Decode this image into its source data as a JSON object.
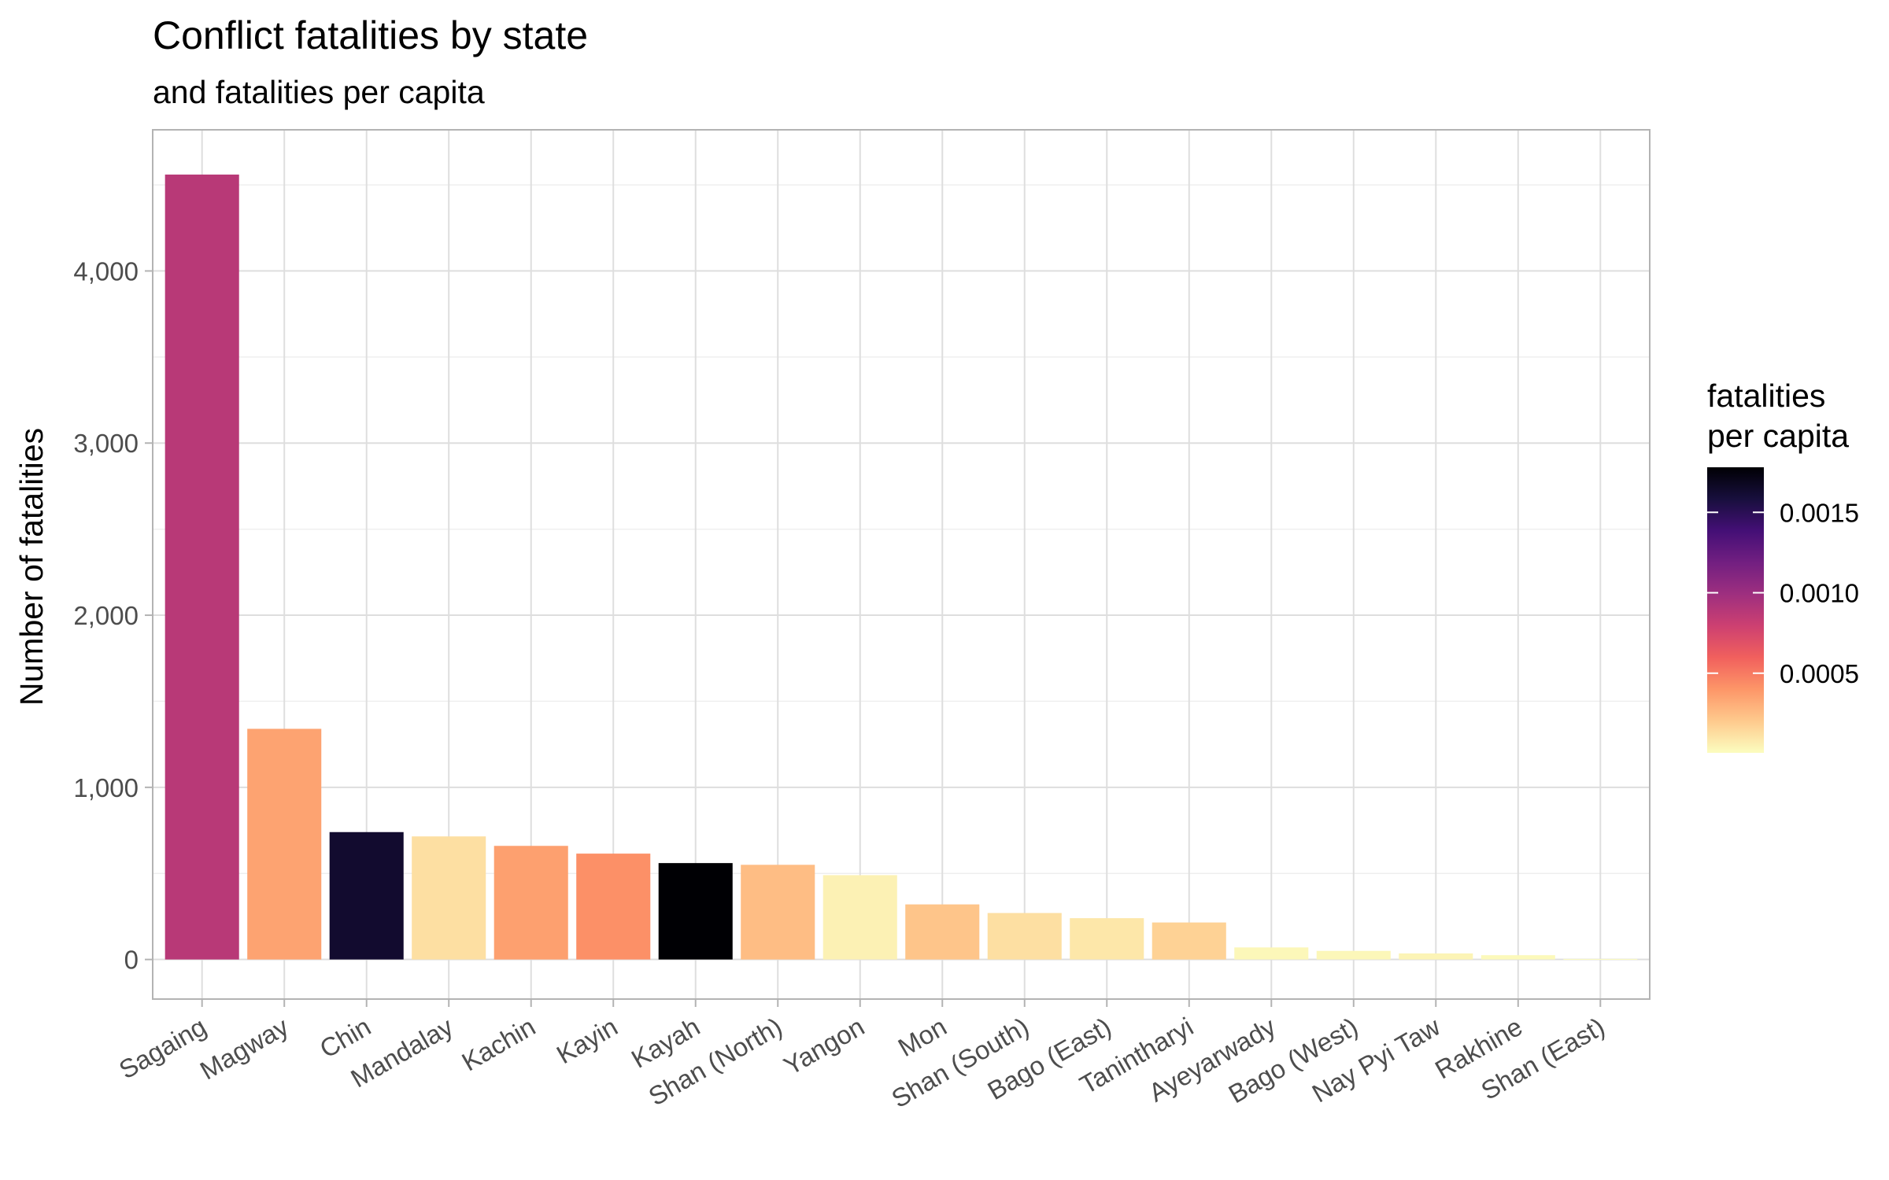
{
  "chart_data": {
    "type": "bar",
    "title": "Conflict fatalities by state",
    "subtitle": "and fatalities per capita",
    "xlabel": "",
    "ylabel": "Number of fatalities",
    "categories": [
      "Sagaing",
      "Magway",
      "Chin",
      "Mandalay",
      "Kachin",
      "Kayin",
      "Kayah",
      "Shan (North)",
      "Yangon",
      "Mon",
      "Shan (South)",
      "Bago (East)",
      "Tanintharyi",
      "Ayeyarwady",
      "Bago (West)",
      "Nay Pyi Taw",
      "Rakhine",
      "Shan (East)"
    ],
    "values": [
      4560,
      1340,
      740,
      715,
      660,
      615,
      560,
      550,
      490,
      320,
      270,
      240,
      215,
      70,
      50,
      35,
      25,
      3
    ],
    "fatalities_per_capita": [
      0.00088,
      0.00035,
      0.00163,
      0.00012,
      0.00036,
      0.00042,
      0.00178,
      0.00025,
      5e-05,
      0.00022,
      0.00012,
      9e-05,
      0.00017,
      3e-05,
      3e-05,
      4e-05,
      2e-05,
      5e-06
    ],
    "ylim": [
      -230,
      4820
    ],
    "y_ticks": [
      0,
      1000,
      2000,
      3000,
      4000
    ],
    "y_tick_labels": [
      "0",
      "1,000",
      "2,000",
      "3,000",
      "4,000"
    ],
    "grid": true,
    "x_tick_rotation_deg": 30,
    "legend": {
      "title_lines": [
        "fatalities",
        "per capita"
      ],
      "placement": "right",
      "type": "colorbar",
      "palette": "magma (reversed)",
      "range": [
        5e-06,
        0.00178
      ],
      "ticks": [
        0.0005,
        0.001,
        0.0015
      ],
      "tick_labels": [
        "0.0005",
        "0.0010",
        "0.0015"
      ]
    },
    "colors": {
      "palette_stops": [
        "#fcfdbf",
        "#feca8d",
        "#fd9668",
        "#f1605d",
        "#cd4071",
        "#9e2f7f",
        "#721f81",
        "#440f76",
        "#180f3d",
        "#000004"
      ],
      "panel_border": "#b3b3b3",
      "grid_major": "#dedede",
      "grid_minor": "#eeeeee",
      "tick_text": "#4d4d4d"
    }
  }
}
